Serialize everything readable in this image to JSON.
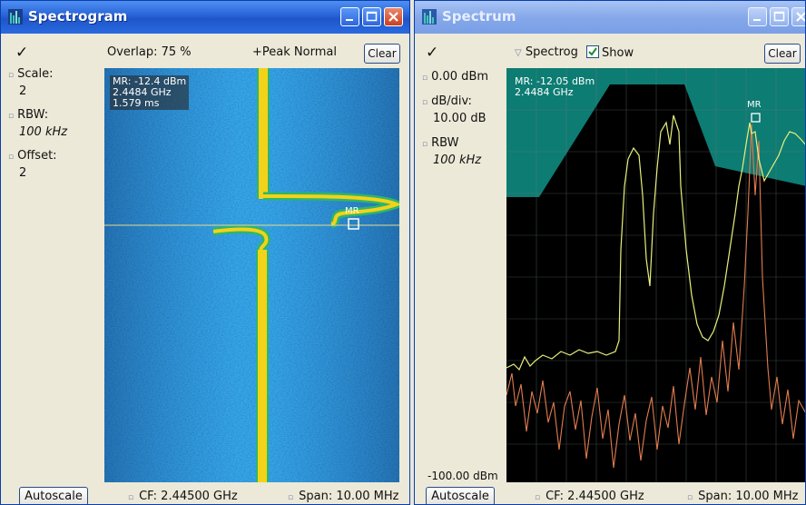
{
  "colors": {
    "title_active": "#2763d8",
    "spectrogram_bg": "#0f3d8e",
    "spectrum_trace_yellow": "#e8f07a",
    "spectrum_trace_orange": "#e07d4f",
    "mask_teal": "#0d7c73"
  },
  "spectrogram": {
    "title": "Spectrogram",
    "checkmark": "✓",
    "overlap": "Overlap: 75 %",
    "peak_mode": "+Peak Normal",
    "clear_label": "Clear",
    "sidebar": [
      {
        "label": "Scale:",
        "value": "2"
      },
      {
        "label": "RBW:",
        "value": "100 kHz"
      },
      {
        "label": "Offset:",
        "value": "2"
      }
    ],
    "readout": [
      "MR: -12.4 dBm",
      "2.4484 GHz",
      "1.579 ms"
    ],
    "marker": "MR",
    "autoscale_label": "Autoscale",
    "cf": "CF: 2.44500 GHz",
    "span": "Span: 10.00 MHz"
  },
  "spectrum": {
    "title": "Spectrum",
    "checkmark": "✓",
    "spectrog_label": "Spectrog",
    "show_label": "Show",
    "show_checked": true,
    "clear_label": "Clear",
    "sidebar": [
      {
        "label": "0.00 dBm"
      },
      {
        "label": "dB/div:",
        "value": "10.00 dB"
      },
      {
        "label": "RBW",
        "value": "100 kHz"
      }
    ],
    "bottom_level": "-100.00 dBm",
    "readout": [
      "MR: -12.05 dBm",
      "2.4484 GHz"
    ],
    "marker": "MR",
    "autoscale_label": "Autoscale",
    "cf": "CF: 2.44500 GHz",
    "span": "Span: 10.00 MHz"
  }
}
